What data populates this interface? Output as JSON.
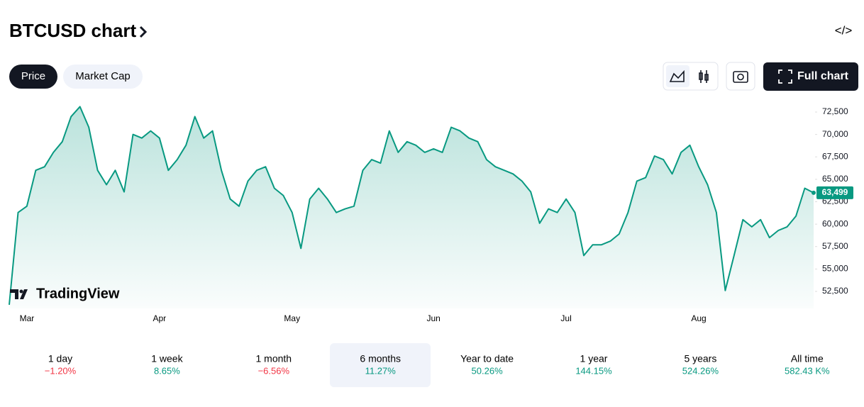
{
  "header": {
    "title": "BTCUSD chart",
    "tabs": [
      "Price",
      "Market Cap"
    ],
    "full_chart": "Full chart"
  },
  "watermark": "TradingView",
  "periods": [
    {
      "label": "1 day",
      "change": "−1.20%"
    },
    {
      "label": "1 week",
      "change": "8.65%"
    },
    {
      "label": "1 month",
      "change": "−6.56%"
    },
    {
      "label": "6 months",
      "change": "11.27%"
    },
    {
      "label": "Year to date",
      "change": "50.26%"
    },
    {
      "label": "1 year",
      "change": "144.15%"
    },
    {
      "label": "5 years",
      "change": "524.26%"
    },
    {
      "label": "All time",
      "change": "582.43 K%"
    }
  ],
  "chart_data": {
    "type": "line",
    "color": "#089981",
    "categories": [
      null,
      null,
      "Mar",
      null,
      null,
      null,
      null,
      null,
      null,
      null,
      null,
      null,
      null,
      null,
      null,
      null,
      null,
      "Apr",
      null,
      null,
      null,
      null,
      null,
      null,
      null,
      null,
      null,
      null,
      null,
      null,
      null,
      null,
      "May",
      null,
      null,
      null,
      null,
      null,
      null,
      null,
      null,
      null,
      null,
      null,
      null,
      null,
      null,
      null,
      "Jun",
      null,
      null,
      null,
      null,
      null,
      null,
      null,
      null,
      null,
      null,
      null,
      null,
      null,
      null,
      "Jul",
      null,
      null,
      null,
      null,
      null,
      null,
      null,
      null,
      null,
      null,
      null,
      null,
      null,
      null,
      "Aug",
      null,
      null,
      null,
      null,
      null,
      null,
      null,
      null,
      null,
      null,
      null,
      null,
      null
    ],
    "values": [
      51000,
      61300,
      62000,
      66000,
      66400,
      68000,
      69200,
      72000,
      73100,
      70800,
      66000,
      64400,
      66000,
      63600,
      70000,
      69600,
      70400,
      69600,
      66000,
      67200,
      68800,
      72000,
      69600,
      70400,
      66000,
      62800,
      62000,
      64800,
      66000,
      66400,
      64000,
      63200,
      61300,
      57300,
      62800,
      64000,
      62800,
      61300,
      61700,
      62000,
      66000,
      67200,
      66800,
      70400,
      68000,
      69200,
      68800,
      68000,
      68400,
      68000,
      70800,
      70400,
      69600,
      69200,
      67200,
      66400,
      66000,
      65600,
      64800,
      63600,
      60100,
      61700,
      61300,
      62800,
      61300,
      56500,
      57700,
      57700,
      58100,
      58900,
      61300,
      64800,
      65200,
      67600,
      67200,
      65600,
      68000,
      68800,
      66400,
      64400,
      61300,
      52600,
      56500,
      60500,
      59700,
      60500,
      58500,
      59300,
      59700,
      60900,
      64000,
      63499
    ],
    "price_label": {
      "value": 63499,
      "label": "63,499"
    },
    "ylim": [
      50600,
      73530
    ],
    "yticks": [
      {
        "value": 52500,
        "label": "52,500"
      },
      {
        "value": 55000,
        "label": "55,000"
      },
      {
        "value": 57500,
        "label": "57,500"
      },
      {
        "value": 60000,
        "label": "60,000"
      },
      {
        "value": 62500,
        "label": "62,500"
      },
      {
        "value": 65000,
        "label": "65,000"
      },
      {
        "value": 67500,
        "label": "67,500"
      },
      {
        "value": 70000,
        "label": "70,000"
      },
      {
        "value": 72500,
        "label": "72,500"
      }
    ],
    "grid": false
  }
}
